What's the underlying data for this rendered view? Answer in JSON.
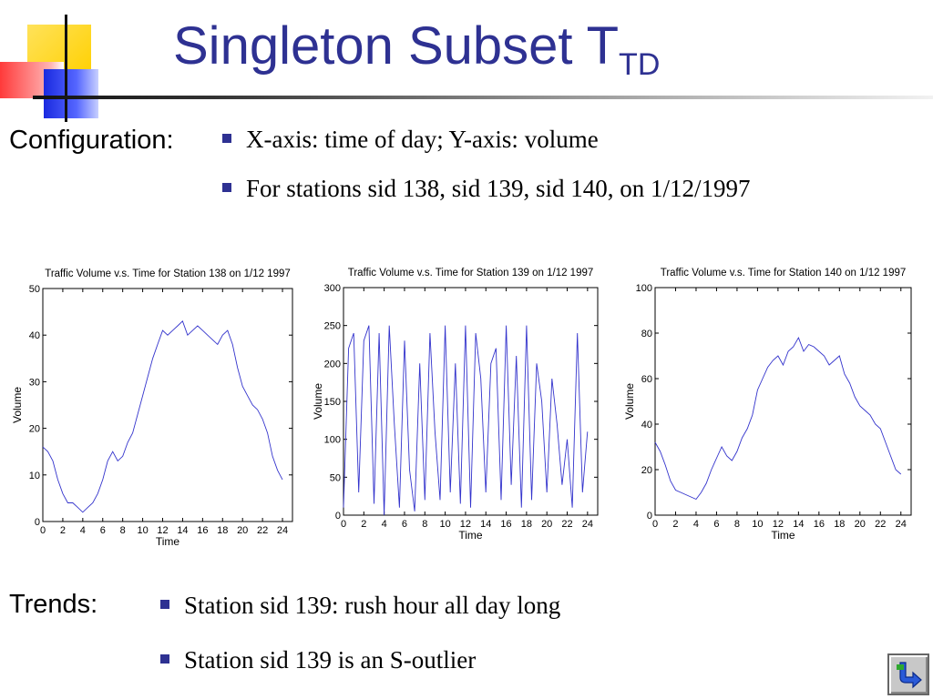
{
  "slide": {
    "title_main": "Singleton Subset T",
    "title_sub": "TD",
    "configuration": {
      "label": "Configuration:",
      "bullets": [
        "X-axis: time of day; Y-axis: volume",
        "For stations sid 138, sid 139, sid 140, on 1/12/1997"
      ]
    },
    "trends": {
      "label": "Trends:",
      "bullets": [
        "Station sid 139: rush hour all day long",
        "Station sid 139 is an S-outlier"
      ]
    }
  },
  "icons": [
    "return-arrow-icon"
  ],
  "colors": {
    "title": "#2e3192",
    "bullet": "#2e3192",
    "series": "#3333cc"
  },
  "chart_data": [
    {
      "type": "line",
      "title": "Traffic Volume v.s. Time for Station 138 on 1/12 1997",
      "xlabel": "Time",
      "ylabel": "Volume",
      "xlim": [
        0,
        25
      ],
      "ylim": [
        0,
        50
      ],
      "xticks": [
        0,
        2,
        4,
        6,
        8,
        10,
        12,
        14,
        16,
        18,
        20,
        22,
        24
      ],
      "yticks": [
        0,
        10,
        20,
        30,
        40,
        50
      ],
      "x": [
        0,
        0.5,
        1,
        1.5,
        2,
        2.5,
        3,
        3.5,
        4,
        4.5,
        5,
        5.5,
        6,
        6.5,
        7,
        7.5,
        8,
        8.5,
        9,
        9.5,
        10,
        10.5,
        11,
        11.5,
        12,
        12.5,
        13,
        13.5,
        14,
        14.5,
        15,
        15.5,
        16,
        16.5,
        17,
        17.5,
        18,
        18.5,
        19,
        19.5,
        20,
        20.5,
        21,
        21.5,
        22,
        22.5,
        23,
        23.5,
        24
      ],
      "values": [
        16,
        15,
        13,
        9,
        6,
        4,
        4,
        3,
        2,
        3,
        4,
        6,
        9,
        13,
        15,
        13,
        14,
        17,
        19,
        23,
        27,
        31,
        35,
        38,
        41,
        40,
        41,
        42,
        43,
        40,
        41,
        42,
        41,
        40,
        39,
        38,
        40,
        41,
        38,
        33,
        29,
        27,
        25,
        24,
        22,
        19,
        14,
        11,
        9
      ]
    },
    {
      "type": "line",
      "title": "Traffic Volume v.s. Time for Station 139 on 1/12 1997",
      "xlabel": "Time",
      "ylabel": "Volume",
      "xlim": [
        0,
        25
      ],
      "ylim": [
        0,
        300
      ],
      "xticks": [
        0,
        2,
        4,
        6,
        8,
        10,
        12,
        14,
        16,
        18,
        20,
        22,
        24
      ],
      "yticks": [
        0,
        50,
        100,
        150,
        200,
        250,
        300
      ],
      "x": [
        0,
        0.5,
        1,
        1.5,
        2,
        2.5,
        3,
        3.5,
        4,
        4.5,
        5,
        5.5,
        6,
        6.5,
        7,
        7.5,
        8,
        8.5,
        9,
        9.5,
        10,
        10.5,
        11,
        11.5,
        12,
        12.5,
        13,
        13.5,
        14,
        14.5,
        15,
        15.5,
        16,
        16.5,
        17,
        17.5,
        18,
        18.5,
        19,
        19.5,
        20,
        20.5,
        21,
        21.5,
        22,
        22.5,
        23,
        23.5,
        24
      ],
      "values": [
        10,
        220,
        240,
        30,
        230,
        250,
        15,
        240,
        0,
        250,
        120,
        10,
        230,
        60,
        5,
        200,
        20,
        240,
        110,
        20,
        250,
        30,
        200,
        15,
        250,
        10,
        240,
        180,
        30,
        200,
        220,
        20,
        250,
        40,
        210,
        10,
        250,
        20,
        200,
        150,
        30,
        180,
        120,
        40,
        100,
        10,
        240,
        30,
        110
      ]
    },
    {
      "type": "line",
      "title": "Traffic Volume v.s. Time for Station 140 on 1/12 1997",
      "xlabel": "Time",
      "ylabel": "Volume",
      "xlim": [
        0,
        25
      ],
      "ylim": [
        0,
        100
      ],
      "xticks": [
        0,
        2,
        4,
        6,
        8,
        10,
        12,
        14,
        16,
        18,
        20,
        22,
        24
      ],
      "yticks": [
        0,
        20,
        40,
        60,
        80,
        100
      ],
      "x": [
        0,
        0.5,
        1,
        1.5,
        2,
        2.5,
        3,
        3.5,
        4,
        4.5,
        5,
        5.5,
        6,
        6.5,
        7,
        7.5,
        8,
        8.5,
        9,
        9.5,
        10,
        10.5,
        11,
        11.5,
        12,
        12.5,
        13,
        13.5,
        14,
        14.5,
        15,
        15.5,
        16,
        16.5,
        17,
        17.5,
        18,
        18.5,
        19,
        19.5,
        20,
        20.5,
        21,
        21.5,
        22,
        22.5,
        23,
        23.5,
        24
      ],
      "values": [
        32,
        28,
        22,
        15,
        11,
        10,
        9,
        8,
        7,
        10,
        14,
        20,
        25,
        30,
        26,
        24,
        28,
        34,
        38,
        44,
        55,
        60,
        65,
        68,
        70,
        66,
        72,
        74,
        78,
        72,
        75,
        74,
        72,
        70,
        66,
        68,
        70,
        62,
        58,
        52,
        48,
        46,
        44,
        40,
        38,
        32,
        26,
        20,
        18
      ]
    }
  ]
}
